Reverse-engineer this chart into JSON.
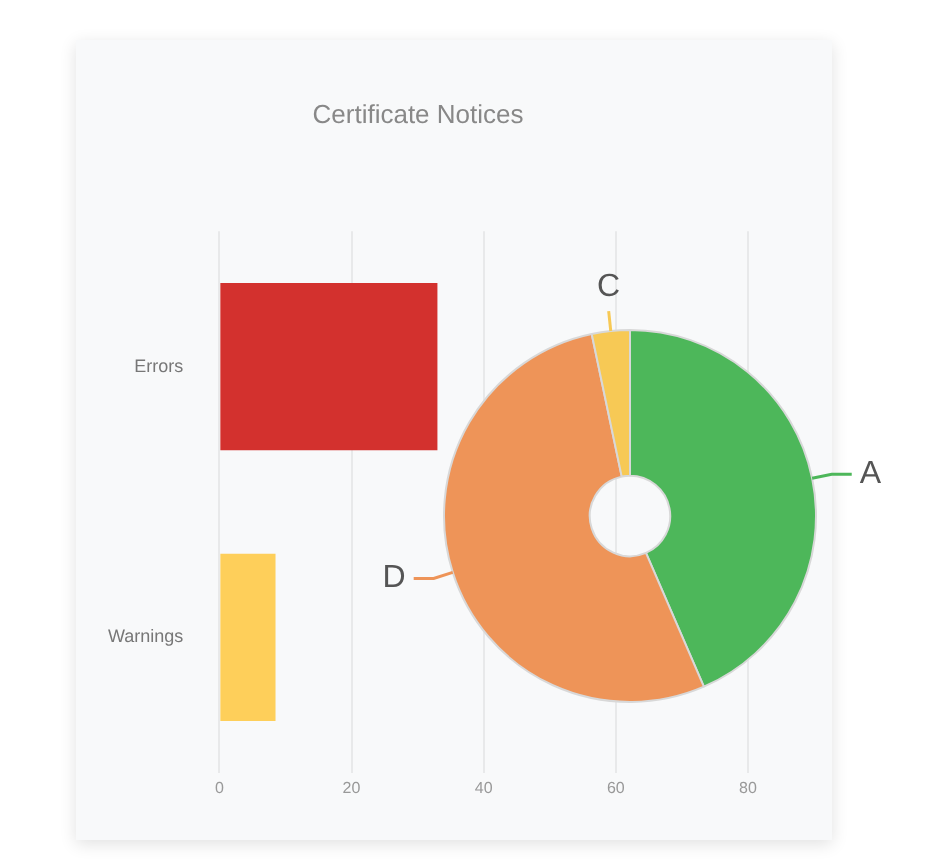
{
  "chart_data": [
    {
      "type": "bar",
      "title": "Certificate Notices",
      "orientation": "horizontal",
      "categories": [
        "Errors",
        "Warnings"
      ],
      "values": [
        33,
        8.5
      ],
      "colors": [
        "#d3312e",
        "#fecf5a"
      ],
      "xlim": [
        0,
        80
      ],
      "xticks": [
        0,
        20,
        40,
        60,
        80
      ],
      "grid": "x",
      "legend": false
    },
    {
      "type": "donut",
      "categories": [
        "A",
        "D",
        "C"
      ],
      "values": [
        43.5,
        53.2,
        3.3
      ],
      "colors": [
        "#4db75a",
        "#ee9458",
        "#f7c955"
      ],
      "legend": false
    }
  ]
}
